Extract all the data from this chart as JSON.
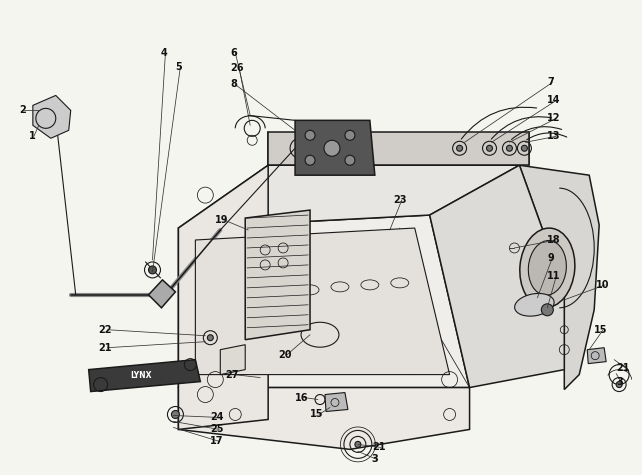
{
  "bg_color": "#f5f5f0",
  "line_color": "#1a1a1a",
  "fig_width": 6.42,
  "fig_height": 4.75,
  "lw_main": 1.1,
  "lw_med": 0.8,
  "lw_thin": 0.55,
  "label_fontsize": 7.0,
  "label_color": "#111111"
}
